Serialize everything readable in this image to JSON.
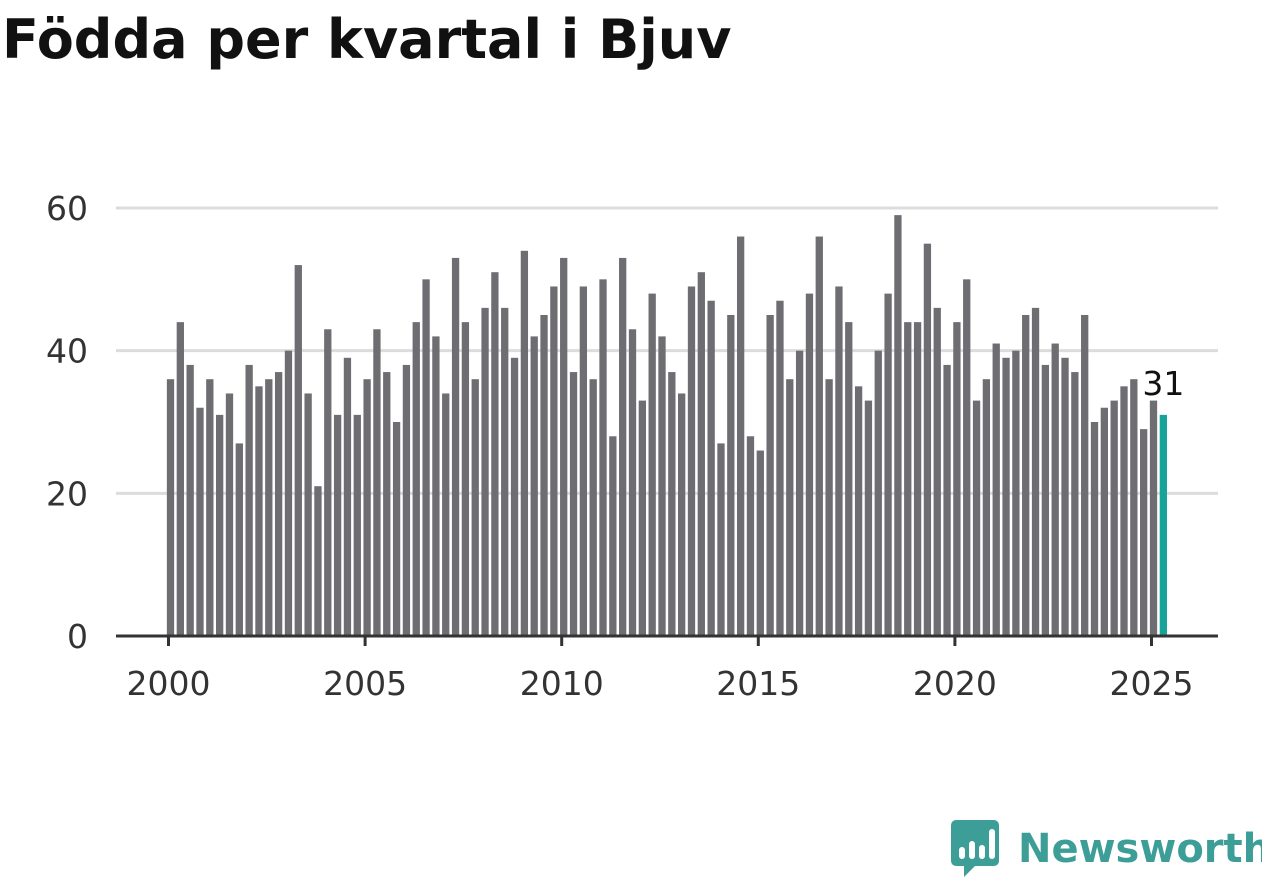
{
  "chart_data": {
    "type": "bar",
    "title": "Födda per kvartal i Bjuv",
    "xlabel": "",
    "ylabel": "",
    "ylim": [
      0,
      60
    ],
    "y_ticks": [
      0,
      20,
      40,
      60
    ],
    "x_ticks": [
      "2000",
      "2005",
      "2010",
      "2015",
      "2020",
      "2025"
    ],
    "start_year": 2000,
    "grid": true,
    "bar_color": "#6e6d72",
    "highlight_color": "#17a398",
    "highlight_label": "31",
    "values": [
      36,
      44,
      38,
      32,
      36,
      31,
      34,
      27,
      38,
      35,
      36,
      37,
      40,
      52,
      34,
      21,
      43,
      31,
      39,
      31,
      36,
      43,
      37,
      30,
      38,
      44,
      50,
      42,
      34,
      53,
      44,
      36,
      46,
      51,
      46,
      39,
      54,
      42,
      45,
      49,
      53,
      37,
      49,
      36,
      50,
      28,
      53,
      43,
      33,
      48,
      42,
      37,
      34,
      49,
      51,
      47,
      27,
      45,
      56,
      28,
      26,
      45,
      47,
      36,
      40,
      48,
      56,
      36,
      49,
      44,
      35,
      33,
      40,
      48,
      59,
      44,
      44,
      55,
      46,
      38,
      44,
      50,
      33,
      36,
      41,
      39,
      40,
      45,
      46,
      38,
      41,
      39,
      37,
      45,
      30,
      32,
      33,
      35,
      36,
      29,
      33,
      31
    ]
  },
  "brand": {
    "name": "Newsworthy",
    "color": "#3d9e98",
    "icon": "newsworthy-logo-icon"
  }
}
